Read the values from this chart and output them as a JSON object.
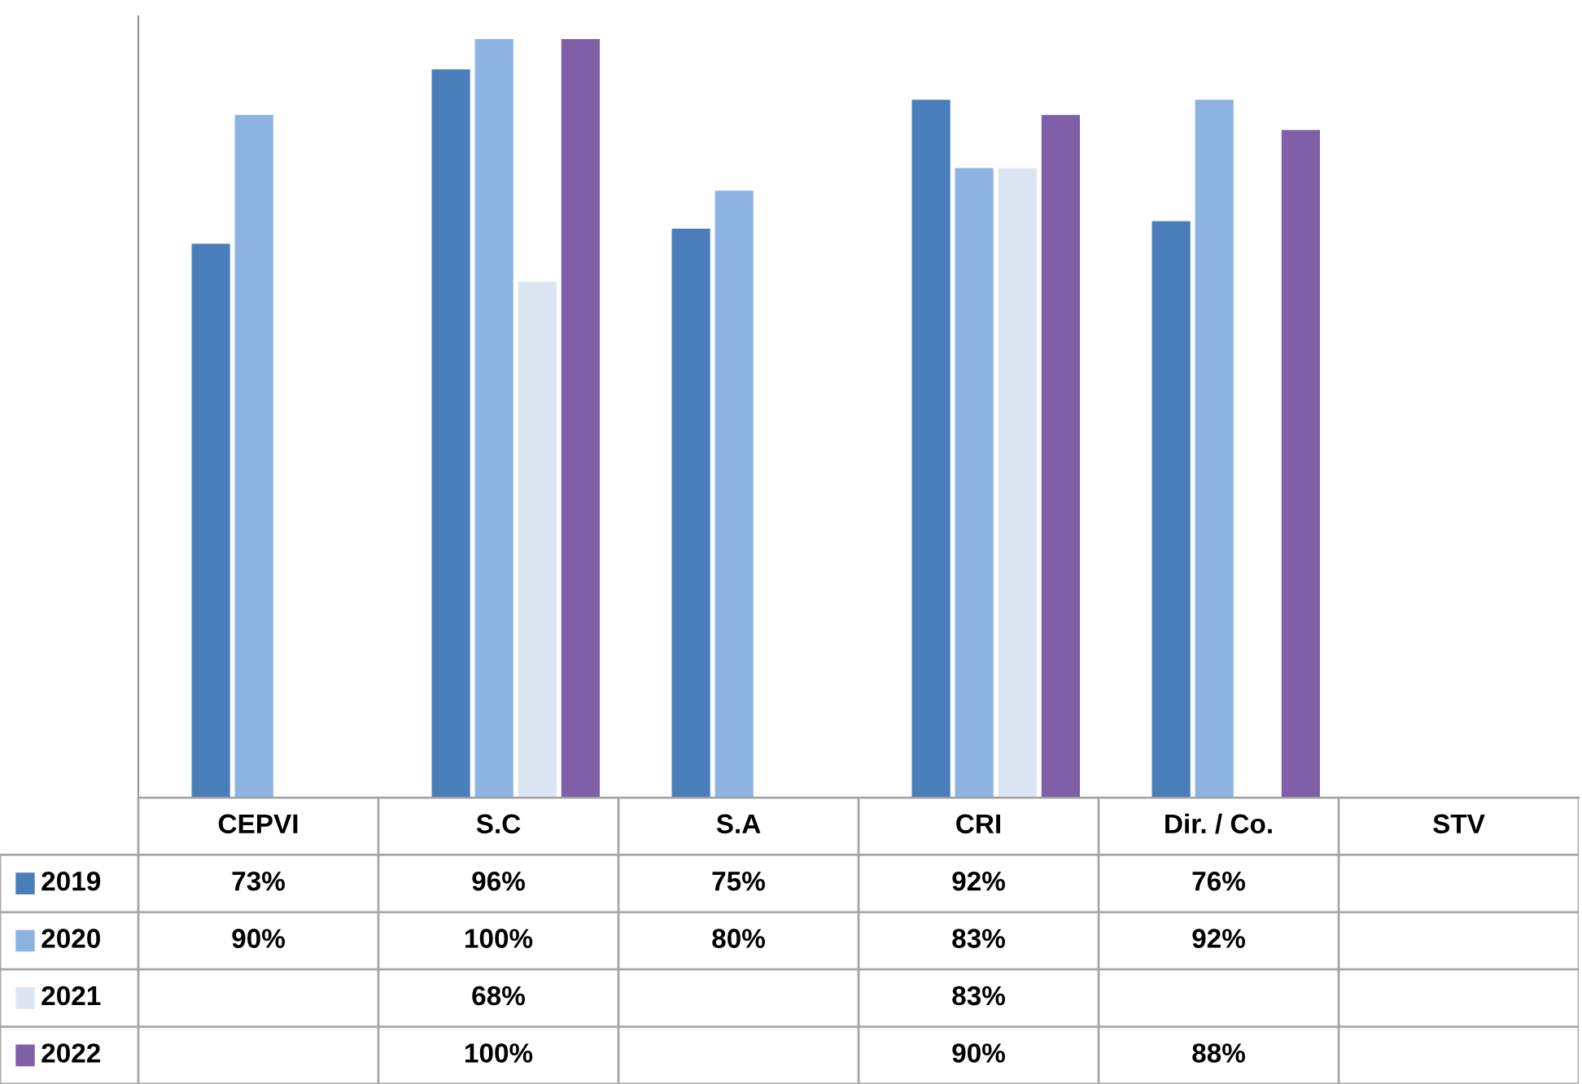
{
  "chart_data": {
    "type": "bar",
    "categories": [
      "CEPVI",
      "S.C",
      "S.A",
      "CRI",
      "Dir. / Co.",
      "STV"
    ],
    "legend": "bottom",
    "series": [
      {
        "name": "2019",
        "color": "#4a7ebb",
        "values": [
          73,
          96,
          75,
          92,
          76,
          null
        ],
        "value_labels": [
          "73%",
          "96%",
          "75%",
          "92%",
          "76%",
          null
        ]
      },
      {
        "name": "2020",
        "color": "#8db3e2",
        "values": [
          90,
          100,
          80,
          83,
          92,
          null
        ],
        "value_labels": [
          "90%",
          "100%",
          "80%",
          "83%",
          "92%",
          null
        ]
      },
      {
        "name": "2021",
        "color": "#dce6f2",
        "values": [
          null,
          68,
          null,
          83,
          null,
          null
        ],
        "value_labels": [
          null,
          "68%",
          null,
          "83%",
          null,
          null
        ]
      },
      {
        "name": "2022",
        "color": "#7f5fa8",
        "values": [
          null,
          100,
          null,
          90,
          88,
          null
        ],
        "value_labels": [
          null,
          "100%",
          null,
          "90%",
          "88%",
          null
        ]
      }
    ]
  }
}
